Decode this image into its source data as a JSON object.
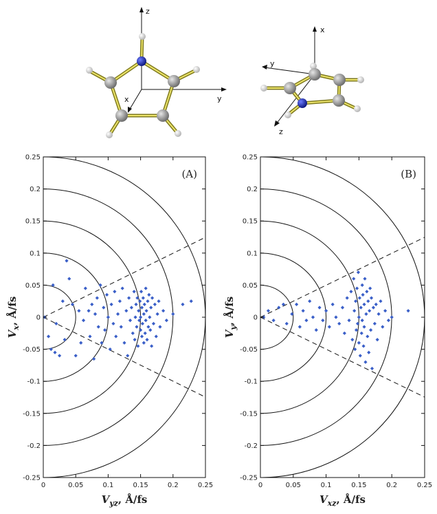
{
  "chart_data": [
    {
      "type": "scatter",
      "panel_label": "(A)",
      "xlabel_main": "V",
      "xlabel_sub": "yz",
      "xlabel_units": ", Å/fs",
      "ylabel_main": "V",
      "ylabel_sub": "x",
      "ylabel_units": ", Å/fs",
      "xlim": [
        0,
        0.25
      ],
      "ylim": [
        -0.25,
        0.25
      ],
      "xticks": [
        "0",
        "0.05",
        "0.1",
        "0.15",
        "0.2",
        "0.25"
      ],
      "yticks": [
        "0.25",
        "0.2",
        "0.15",
        "0.1",
        "0.05",
        "0",
        "-0.05",
        "-0.1",
        "-0.15",
        "-0.2",
        "-0.25"
      ],
      "circle_radii": [
        0.05,
        0.1,
        0.15,
        0.2,
        0.25
      ],
      "cone_half_angle_deg": 26.5,
      "marker_color": "#3a5fc8",
      "points": [
        [
          0.002,
          0.0
        ],
        [
          0.008,
          -0.03
        ],
        [
          0.012,
          -0.05
        ],
        [
          0.015,
          0.05
        ],
        [
          0.018,
          -0.055
        ],
        [
          0.02,
          -0.01
        ],
        [
          0.025,
          -0.06
        ],
        [
          0.03,
          0.025
        ],
        [
          0.033,
          -0.035
        ],
        [
          0.036,
          0.088
        ],
        [
          0.04,
          0.06
        ],
        [
          0.045,
          0.02
        ],
        [
          0.05,
          -0.06
        ],
        [
          0.055,
          0.01
        ],
        [
          0.058,
          -0.04
        ],
        [
          0.062,
          -0.005
        ],
        [
          0.065,
          0.045
        ],
        [
          0.07,
          0.01
        ],
        [
          0.072,
          -0.03
        ],
        [
          0.075,
          0.02
        ],
        [
          0.078,
          -0.065
        ],
        [
          0.08,
          0.005
        ],
        [
          0.083,
          0.03
        ],
        [
          0.085,
          -0.015
        ],
        [
          0.088,
          0.05
        ],
        [
          0.09,
          -0.04
        ],
        [
          0.093,
          0.015
        ],
        [
          0.095,
          -0.02
        ],
        [
          0.098,
          0.035
        ],
        [
          0.1,
          0.0
        ],
        [
          0.103,
          -0.05
        ],
        [
          0.105,
          0.02
        ],
        [
          0.108,
          -0.01
        ],
        [
          0.11,
          0.04
        ],
        [
          0.112,
          -0.03
        ],
        [
          0.115,
          0.005
        ],
        [
          0.118,
          0.025
        ],
        [
          0.12,
          -0.015
        ],
        [
          0.122,
          0.045
        ],
        [
          0.125,
          -0.04
        ],
        [
          0.128,
          0.01
        ],
        [
          0.13,
          -0.06
        ],
        [
          0.132,
          0.03
        ],
        [
          0.134,
          -0.005
        ],
        [
          0.136,
          0.015
        ],
        [
          0.138,
          -0.025
        ],
        [
          0.14,
          0.04
        ],
        [
          0.141,
          -0.035
        ],
        [
          0.142,
          0.0
        ],
        [
          0.143,
          0.02
        ],
        [
          0.144,
          -0.015
        ],
        [
          0.145,
          0.03
        ],
        [
          0.146,
          -0.045
        ],
        [
          0.147,
          0.01
        ],
        [
          0.148,
          -0.005
        ],
        [
          0.149,
          0.025
        ],
        [
          0.15,
          0.0
        ],
        [
          0.15,
          -0.02
        ],
        [
          0.151,
          0.04
        ],
        [
          0.152,
          -0.03
        ],
        [
          0.152,
          0.015
        ],
        [
          0.153,
          -0.01
        ],
        [
          0.154,
          0.03
        ],
        [
          0.155,
          -0.04
        ],
        [
          0.155,
          0.005
        ],
        [
          0.156,
          0.02
        ],
        [
          0.157,
          -0.025
        ],
        [
          0.158,
          0.045
        ],
        [
          0.158,
          -0.005
        ],
        [
          0.159,
          0.01
        ],
        [
          0.16,
          -0.035
        ],
        [
          0.161,
          0.025
        ],
        [
          0.162,
          -0.015
        ],
        [
          0.163,
          0.035
        ],
        [
          0.164,
          0.0
        ],
        [
          0.165,
          -0.02
        ],
        [
          0.166,
          0.015
        ],
        [
          0.167,
          -0.045
        ],
        [
          0.168,
          0.03
        ],
        [
          0.17,
          -0.01
        ],
        [
          0.172,
          0.02
        ],
        [
          0.174,
          -0.03
        ],
        [
          0.176,
          0.005
        ],
        [
          0.178,
          0.025
        ],
        [
          0.18,
          -0.015
        ],
        [
          0.185,
          0.01
        ],
        [
          0.19,
          -0.005
        ],
        [
          0.2,
          0.005
        ],
        [
          0.215,
          0.02
        ],
        [
          0.228,
          0.025
        ]
      ]
    },
    {
      "type": "scatter",
      "panel_label": "(B)",
      "xlabel_main": "V",
      "xlabel_sub": "xz",
      "xlabel_units": ", Å/fs",
      "ylabel_main": "V",
      "ylabel_sub": "y",
      "ylabel_units": ", Å/fs",
      "xlim": [
        0,
        0.25
      ],
      "ylim": [
        -0.25,
        0.25
      ],
      "xticks": [
        "0",
        "0.05",
        "0.1",
        "0.15",
        "0.2",
        "0.25"
      ],
      "yticks": [
        "0.25",
        "0.2",
        "0.15",
        "0.1",
        "0.05",
        "0",
        "-0.05",
        "-0.1",
        "-0.15",
        "-0.2",
        "-0.25"
      ],
      "circle_radii": [
        0.05,
        0.1,
        0.15,
        0.2,
        0.25
      ],
      "cone_half_angle_deg": 26.5,
      "marker_color": "#3a5fc8",
      "points": [
        [
          0.005,
          0.0
        ],
        [
          0.012,
          0.01
        ],
        [
          0.02,
          -0.005
        ],
        [
          0.028,
          0.015
        ],
        [
          0.035,
          0.02
        ],
        [
          0.04,
          -0.01
        ],
        [
          0.048,
          0.005
        ],
        [
          0.055,
          0.02
        ],
        [
          0.06,
          -0.015
        ],
        [
          0.065,
          0.01
        ],
        [
          0.07,
          -0.005
        ],
        [
          0.075,
          0.025
        ],
        [
          0.08,
          0.0
        ],
        [
          0.085,
          -0.02
        ],
        [
          0.09,
          0.015
        ],
        [
          0.095,
          -0.005
        ],
        [
          0.1,
          0.01
        ],
        [
          0.105,
          -0.015
        ],
        [
          0.11,
          0.02
        ],
        [
          0.115,
          0.0
        ],
        [
          0.12,
          -0.01
        ],
        [
          0.125,
          0.015
        ],
        [
          0.128,
          -0.025
        ],
        [
          0.132,
          0.03
        ],
        [
          0.135,
          -0.005
        ],
        [
          0.138,
          0.04
        ],
        [
          0.14,
          -0.035
        ],
        [
          0.142,
          0.06
        ],
        [
          0.143,
          0.01
        ],
        [
          0.144,
          -0.05
        ],
        [
          0.145,
          0.025
        ],
        [
          0.146,
          -0.02
        ],
        [
          0.147,
          0.045
        ],
        [
          0.148,
          -0.01
        ],
        [
          0.149,
          0.07
        ],
        [
          0.15,
          0.0
        ],
        [
          0.15,
          -0.04
        ],
        [
          0.151,
          0.03
        ],
        [
          0.152,
          -0.06
        ],
        [
          0.153,
          0.015
        ],
        [
          0.154,
          -0.025
        ],
        [
          0.155,
          0.05
        ],
        [
          0.155,
          -0.005
        ],
        [
          0.156,
          0.035
        ],
        [
          0.157,
          -0.045
        ],
        [
          0.158,
          0.02
        ],
        [
          0.158,
          -0.015
        ],
        [
          0.159,
          0.06
        ],
        [
          0.16,
          -0.07
        ],
        [
          0.161,
          0.005
        ],
        [
          0.162,
          0.04
        ],
        [
          0.163,
          -0.03
        ],
        [
          0.164,
          0.025
        ],
        [
          0.165,
          -0.055
        ],
        [
          0.166,
          0.01
        ],
        [
          0.167,
          0.045
        ],
        [
          0.168,
          -0.02
        ],
        [
          0.169,
          0.03
        ],
        [
          0.17,
          -0.08
        ],
        [
          0.172,
          0.015
        ],
        [
          0.174,
          -0.01
        ],
        [
          0.176,
          0.02
        ],
        [
          0.178,
          -0.035
        ],
        [
          0.18,
          0.005
        ],
        [
          0.183,
          0.025
        ],
        [
          0.186,
          -0.015
        ],
        [
          0.19,
          0.01
        ],
        [
          0.195,
          -0.005
        ],
        [
          0.2,
          0.0
        ],
        [
          0.225,
          0.01
        ]
      ]
    }
  ],
  "molecules": [
    {
      "axis_labels": [
        "z",
        "y",
        "x"
      ]
    },
    {
      "axis_labels": [
        "x",
        "y",
        "z"
      ]
    }
  ]
}
